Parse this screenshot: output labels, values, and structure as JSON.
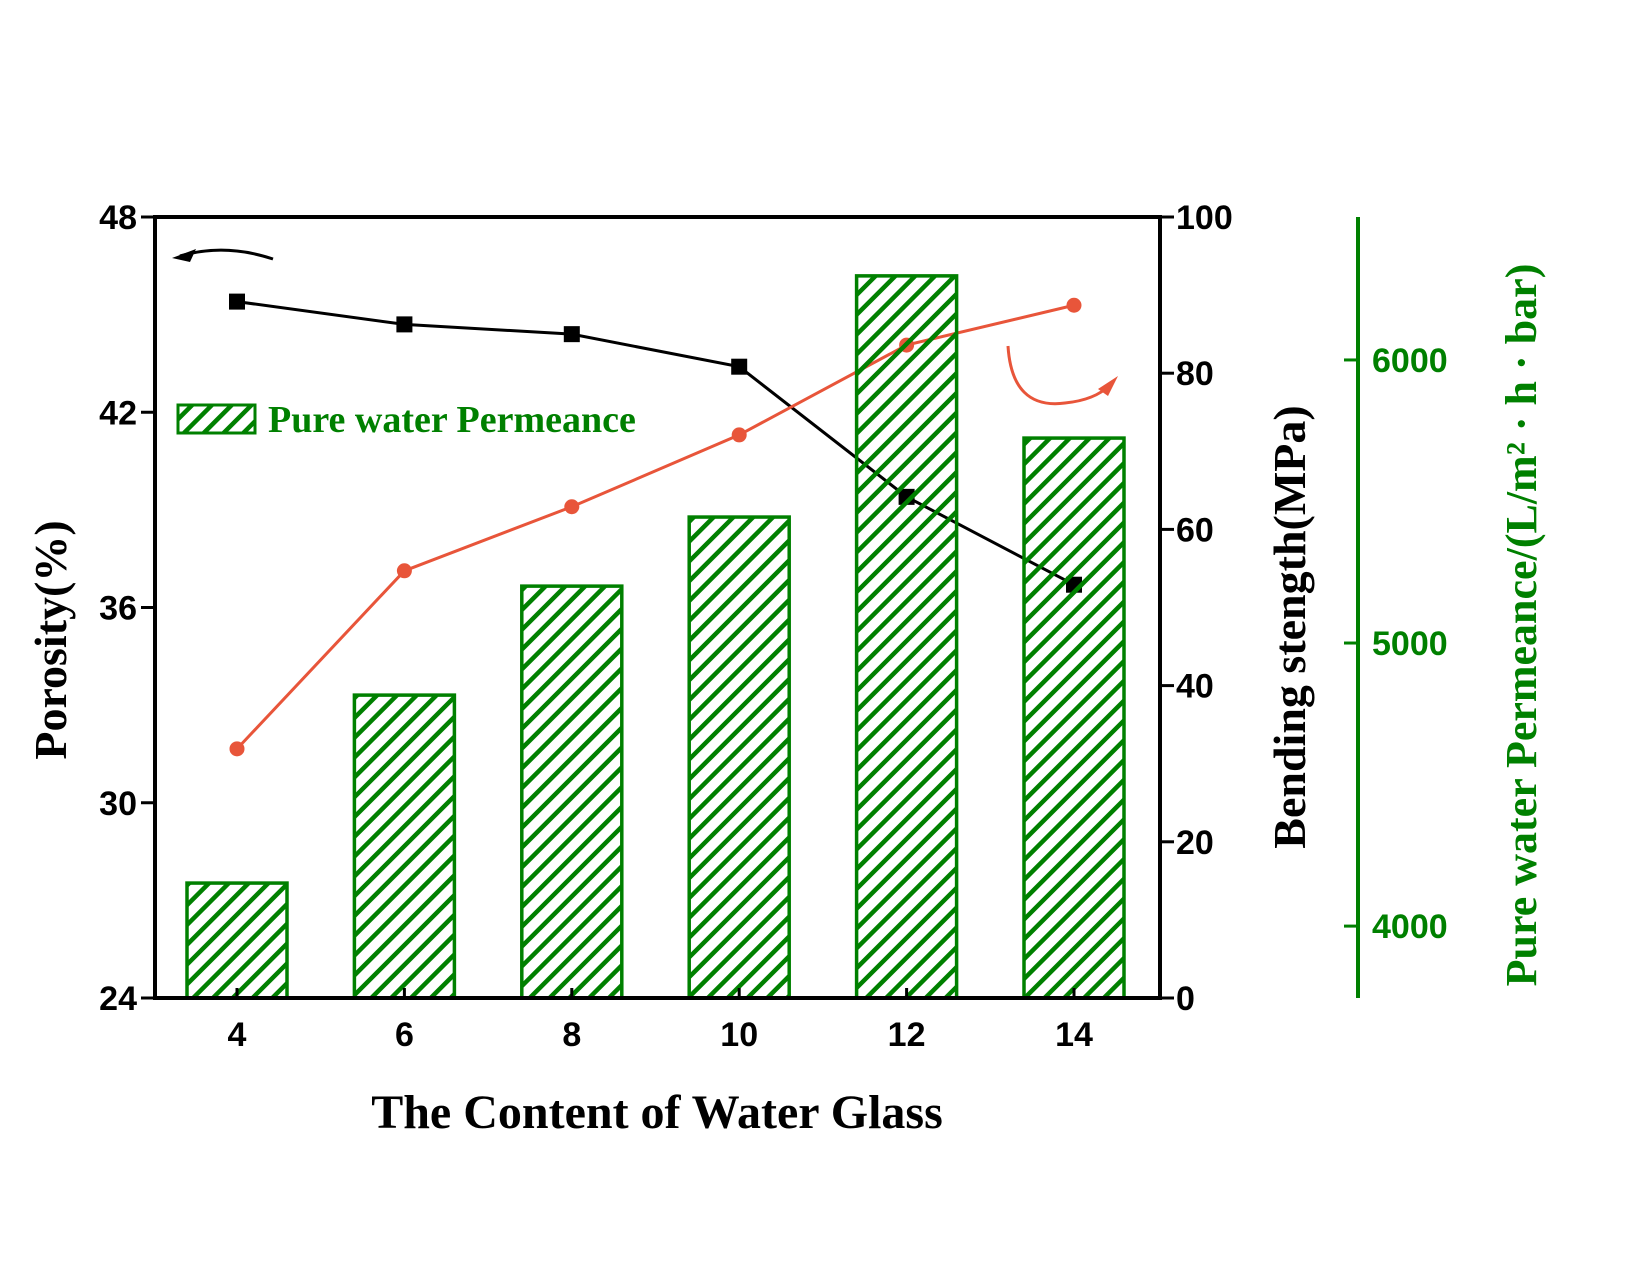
{
  "chart_data": {
    "type": "bar+line",
    "xlabel": "The Content of Water Glass",
    "x": [
      4,
      6,
      8,
      10,
      12,
      14
    ],
    "xticks": [
      "4",
      "6",
      "8",
      "10",
      "12",
      "14"
    ],
    "axes": {
      "left": {
        "label": "Porosity(%)",
        "range": [
          24,
          48
        ],
        "ticks": [
          "24",
          "30",
          "36",
          "42",
          "48"
        ]
      },
      "right": {
        "label": "Bending stength(MPa)",
        "range": [
          0,
          100
        ],
        "ticks": [
          "0",
          "20",
          "40",
          "60",
          "80",
          "100"
        ]
      },
      "right2": {
        "label": "Pure water Permeance/(L/m² · h · bar)",
        "range": [
          3746,
          6505
        ],
        "ticks": [
          "4000",
          "5000",
          "6000"
        ],
        "color": "#008000"
      }
    },
    "series": [
      {
        "name": "Porosity",
        "type": "line",
        "axis": "left",
        "marker": "square",
        "color": "#000000",
        "values": [
          45.4,
          44.7,
          44.4,
          43.4,
          39.4,
          36.7
        ]
      },
      {
        "name": "Bending strength",
        "type": "line",
        "axis": "right",
        "marker": "circle",
        "color": "#E8553A",
        "values": [
          31.9,
          54.7,
          62.9,
          72.1,
          83.6,
          88.7
        ]
      },
      {
        "name": "Pure water Permeance",
        "type": "bar",
        "axis": "right2",
        "pattern": "hatch",
        "color": "#008000",
        "values": [
          4152,
          4816,
          5201,
          5445,
          6297,
          5724
        ]
      }
    ],
    "legend": {
      "entries": [
        "Pure water Permeance"
      ],
      "placement": "upper-left"
    },
    "grid": false
  }
}
